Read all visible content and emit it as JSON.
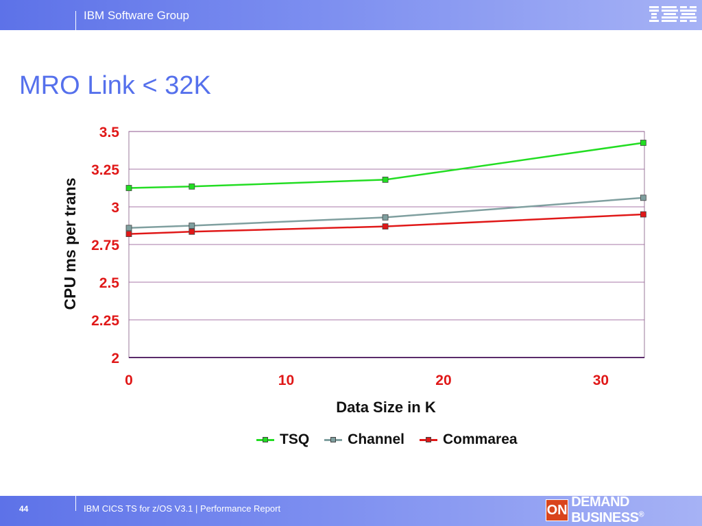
{
  "header": {
    "group": "IBM Software Group",
    "logo": "IBM"
  },
  "slide": {
    "title": "MRO Link < 32K"
  },
  "chart_data": {
    "type": "line",
    "xlabel": "Data Size in K",
    "ylabel": "CPU ms per trans",
    "xlim": [
      0,
      32.77
    ],
    "ylim": [
      2,
      3.5
    ],
    "xticks": [
      "0",
      "10",
      "20",
      "30"
    ],
    "xtick_values": [
      0,
      10,
      20,
      30
    ],
    "yticks": [
      "2",
      "2.25",
      "2.5",
      "2.75",
      "3",
      "3.25",
      "3.5"
    ],
    "ytick_values": [
      2,
      2.25,
      2.5,
      2.75,
      3,
      3.25,
      3.5
    ],
    "grid": "horizontal",
    "legend": "bottom",
    "x": [
      0,
      4,
      16.3,
      32.7
    ],
    "series": [
      {
        "name": "TSQ",
        "color": "#22dd22",
        "values": [
          3.125,
          3.135,
          3.18,
          3.425
        ]
      },
      {
        "name": "Channel",
        "color": "#7f9f9f",
        "values": [
          2.86,
          2.875,
          2.93,
          3.06
        ]
      },
      {
        "name": "Commarea",
        "color": "#e01818",
        "values": [
          2.82,
          2.835,
          2.87,
          2.95
        ]
      }
    ],
    "colors": {
      "axis_labels": "#e01818",
      "grid": "#8a4a8a"
    }
  },
  "footer": {
    "page_number": "44",
    "text": "IBM CICS TS for z/OS V3.1  |  Performance Report",
    "badge_on": "ON",
    "badge_text": "DEMAND BUSINESS"
  },
  "badge_symbol": "®"
}
